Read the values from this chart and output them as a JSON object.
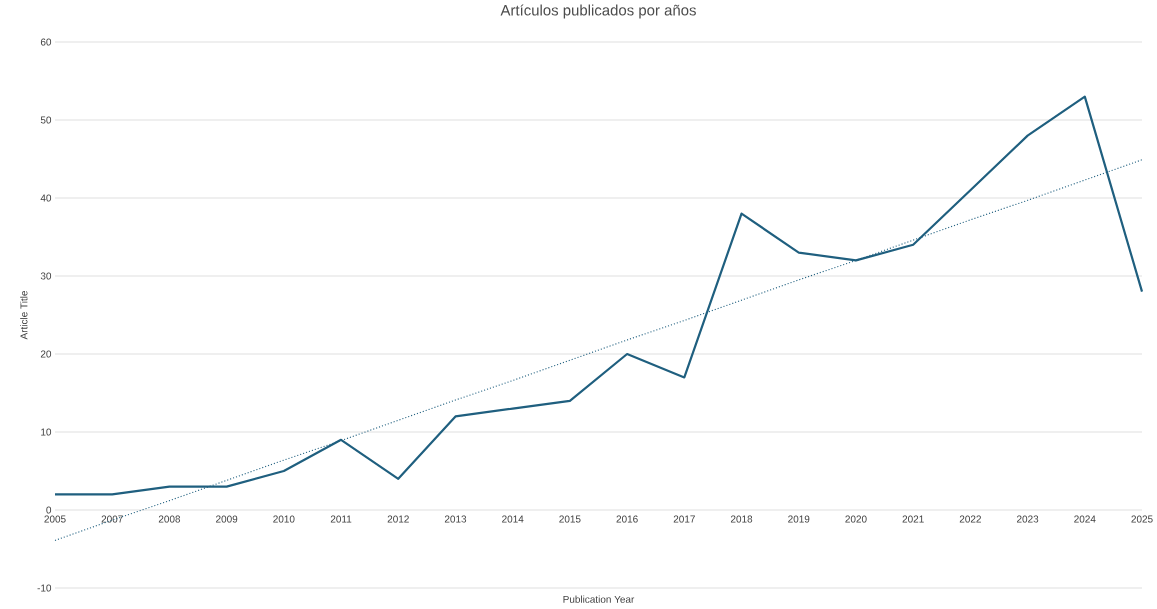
{
  "chart_data": {
    "type": "line",
    "title": "Artículos publicados por años",
    "xlabel": "Publication Year",
    "ylabel": "Article Title",
    "categories": [
      "2005",
      "2007",
      "2008",
      "2009",
      "2010",
      "2011",
      "2012",
      "2013",
      "2014",
      "2015",
      "2016",
      "2017",
      "2018",
      "2019",
      "2020",
      "2021",
      "2022",
      "2023",
      "2024",
      "2025"
    ],
    "series": [
      {
        "color": "#1f5f7f",
        "values": [
          2,
          2,
          3,
          3,
          5,
          9,
          4,
          12,
          13,
          14,
          20,
          17,
          38,
          33,
          32,
          34,
          41,
          48,
          53,
          28
        ]
      },
      {
        "type": "line",
        "line_style": "dotted",
        "color": "#1f5f7f",
        "values": [
          -3.9,
          -1.3,
          1.2,
          3.8,
          6.4,
          8.9,
          11.5,
          14.1,
          16.6,
          19.2,
          21.8,
          24.3,
          26.9,
          29.5,
          32.0,
          34.6,
          37.2,
          39.7,
          42.3,
          44.9
        ]
      }
    ],
    "ylim": [
      -10,
      60
    ],
    "yticks": [
      -10,
      0,
      10,
      20,
      30,
      40,
      50,
      60
    ],
    "grid": "y"
  }
}
